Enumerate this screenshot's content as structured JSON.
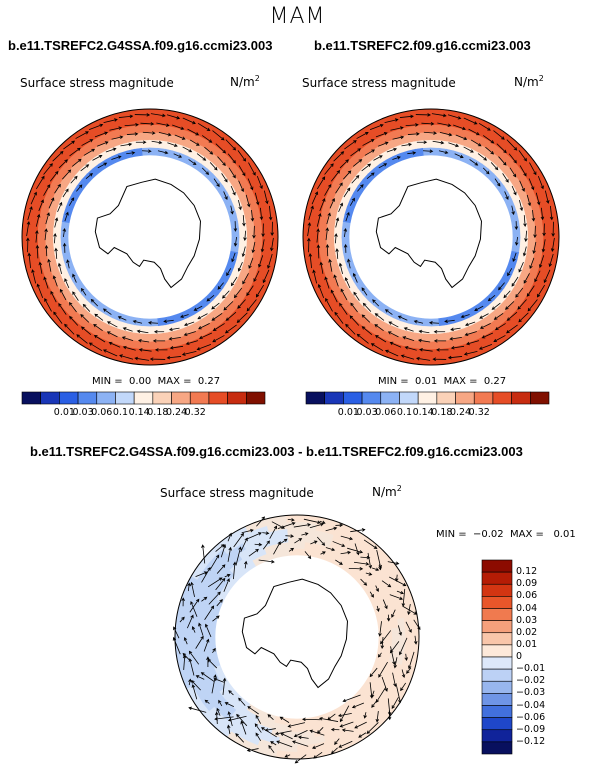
{
  "figure": {
    "season": "MAM",
    "variable": "Surface stress magnitude",
    "units": "N/m",
    "units_sup": "2"
  },
  "panels": [
    {
      "title": "b.e11.TSREFC2.G4SSA.f09.g16.ccmi23.003",
      "min_label": "MIN =",
      "min": "0.00",
      "max_label": "MAX =",
      "max": "0.27"
    },
    {
      "title": "b.e11.TSREFC2.f09.g16.ccmi23.003",
      "min_label": "MIN =",
      "min": "0.01",
      "max_label": "MAX =",
      "max": "0.27"
    },
    {
      "title": "b.e11.TSREFC2.G4SSA.f09.g16.ccmi23.003 - b.e11.TSREFC2.f09.g16.ccmi23.003",
      "min_label": "MIN =",
      "min": "−0.02",
      "max_label": "MAX =",
      "max": "0.01"
    }
  ],
  "colorbars": {
    "absolute": {
      "ticks": [
        "0.01",
        "0.03",
        "0.06",
        "0.1",
        "0.14",
        "0.18",
        "0.24",
        "0.32"
      ],
      "colors": [
        "#08105e",
        "#1936b7",
        "#2a5fe4",
        "#5589ef",
        "#8cb2f4",
        "#c2d8fa",
        "#fff1e4",
        "#fbd2b8",
        "#f7a784",
        "#f27a52",
        "#e64d26",
        "#c72c10",
        "#801000"
      ]
    },
    "difference": {
      "ticks": [
        "0.12",
        "0.09",
        "0.06",
        "0.04",
        "0.03",
        "0.02",
        "0.01",
        "0",
        "−0.01",
        "−0.02",
        "−0.03",
        "−0.04",
        "−0.06",
        "−0.09",
        "−0.12"
      ],
      "colors": [
        "#8c0b00",
        "#b51c05",
        "#d33512",
        "#e8562a",
        "#f07a4f",
        "#f5a07c",
        "#f9c6aa",
        "#fde9da",
        "#dde8fa",
        "#bcd1f5",
        "#98b6ee",
        "#6f95e6",
        "#4270dd",
        "#1f47c9",
        "#10239a",
        "#08105e"
      ]
    }
  }
}
